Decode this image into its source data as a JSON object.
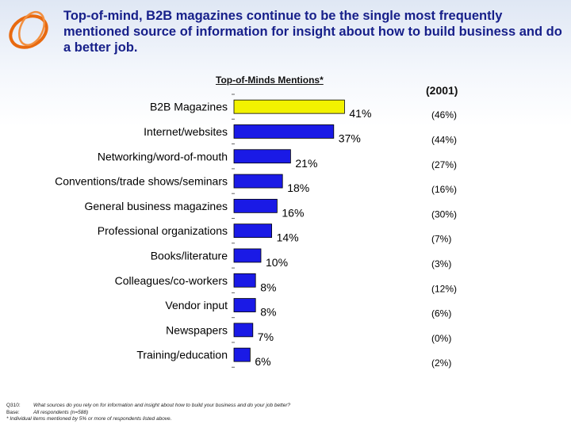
{
  "headline": "Top-of-mind, B2B magazines continue to be the single most frequently mentioned source of information for insight about how to build business and do a better job.",
  "chart_data": {
    "type": "bar",
    "orientation": "horizontal",
    "title": "Top-of-Minds Mentions*",
    "comparison_header": "(2001)",
    "categories": [
      "B2B Magazines",
      "Internet/websites",
      "Networking/word-of-mouth",
      "Conventions/trade shows/seminars",
      "General business magazines",
      "Professional organizations",
      "Books/literature",
      "Colleagues/co-workers",
      "Vendor input",
      "Newspapers",
      "Training/education"
    ],
    "values": [
      41,
      37,
      21,
      18,
      16,
      14,
      10,
      8,
      8,
      7,
      6
    ],
    "value_labels": [
      "41%",
      "37%",
      "21%",
      "18%",
      "16%",
      "14%",
      "10%",
      "8%",
      "8%",
      "7%",
      "6%"
    ],
    "prior_labels": [
      "(46%)",
      "(44%)",
      "(27%)",
      "(16%)",
      "(30%)",
      "(7%)",
      "(3%)",
      "(12%)",
      "(6%)",
      "(0%)",
      "(2%)"
    ],
    "highlight_index": 0,
    "highlight_color": "#f2f200",
    "bar_color": "#1a1ae6",
    "legend": "none",
    "grid": false
  },
  "footnotes": {
    "q_key": "Q310:",
    "q_text": "What sources do you rely on for information and insight about how to build your business and do your job better?",
    "base_key": "Base:",
    "base_text": "All respondents (n=588)",
    "note": "* Individual items mentioned by 5% or more of respondents listed above."
  },
  "colors": {
    "headline": "#17208a",
    "logo": "#e86a10"
  }
}
